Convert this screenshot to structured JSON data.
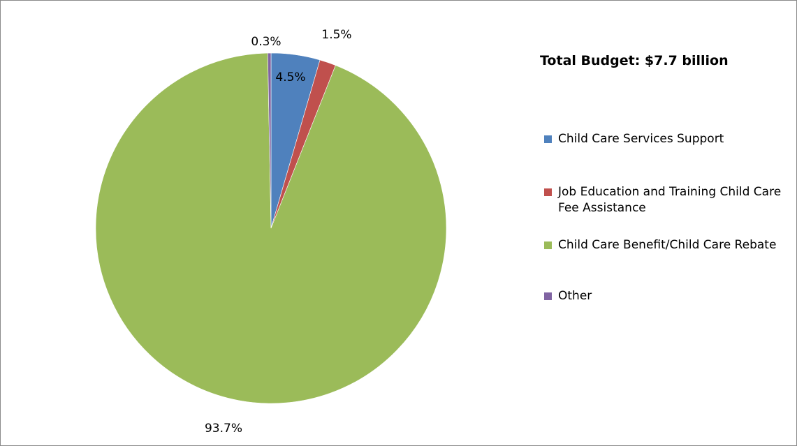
{
  "chart_data": {
    "type": "pie",
    "title": "Total Budget: $7.7 billion",
    "legend_position": "right",
    "slices": [
      {
        "name": "Child Care Services Support",
        "value": 4.5,
        "label": "4.5%",
        "color": "#4F81BD"
      },
      {
        "name": "Job Education and Training Child Care Fee Assistance",
        "value": 1.5,
        "label": "1.5%",
        "color": "#C0504D"
      },
      {
        "name": "Child Care Benefit/Child Care Rebate",
        "value": 93.7,
        "label": "93.7%",
        "color": "#9BBB59"
      },
      {
        "name": "Other",
        "value": 0.3,
        "label": "0.3%",
        "color": "#8064A2"
      }
    ]
  }
}
